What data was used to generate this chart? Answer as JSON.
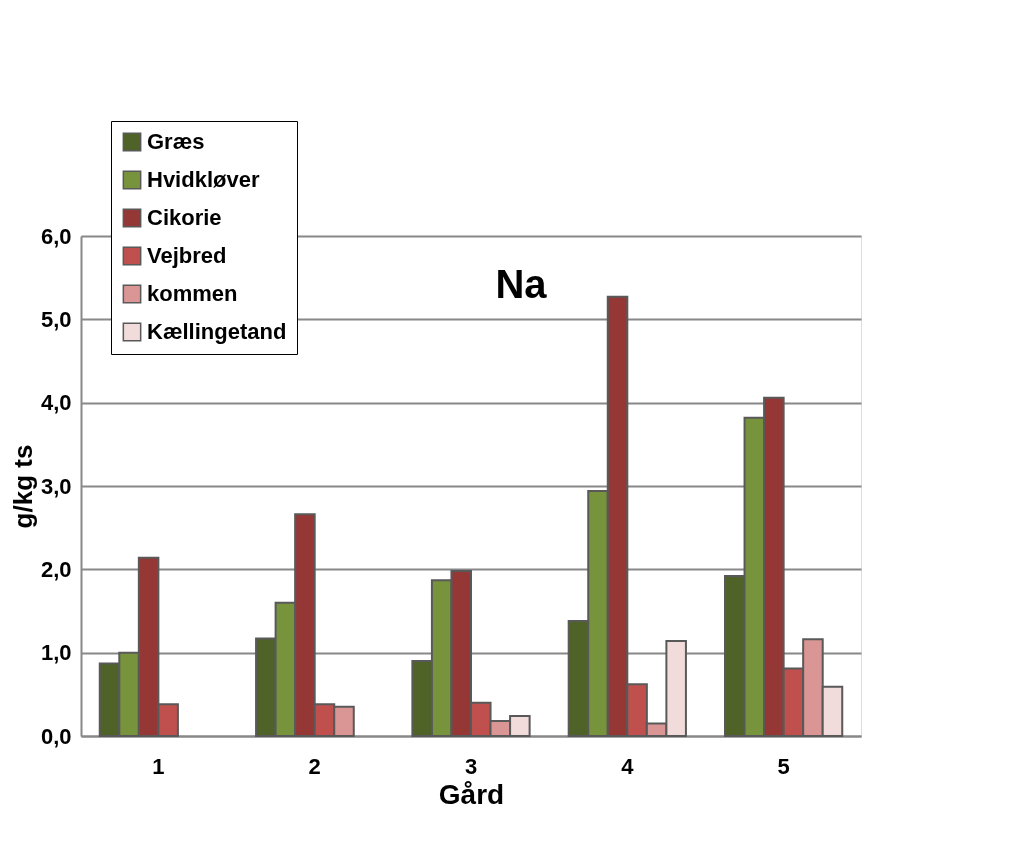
{
  "chart_data": {
    "type": "bar",
    "title": "Na",
    "xlabel": "Gård",
    "ylabel": "g/kg ts",
    "categories": [
      "1",
      "2",
      "3",
      "4",
      "5"
    ],
    "series": [
      {
        "name": "Græs",
        "color": "#4f6228",
        "values": [
          0.87,
          1.17,
          0.9,
          1.38,
          1.92
        ]
      },
      {
        "name": "Hvidkløver",
        "color": "#77933c",
        "values": [
          1.0,
          1.6,
          1.87,
          2.94,
          3.82
        ]
      },
      {
        "name": "Cikorie",
        "color": "#953735",
        "values": [
          2.14,
          2.66,
          1.98,
          5.27,
          4.06
        ]
      },
      {
        "name": "Vejbred",
        "color": "#c0504d",
        "values": [
          0.38,
          0.38,
          0.4,
          0.62,
          0.81
        ]
      },
      {
        "name": "kommen",
        "color": "#d99694",
        "values": [
          null,
          0.35,
          0.18,
          0.15,
          1.16
        ]
      },
      {
        "name": "Kællingetand",
        "color": "#f2dcdb",
        "values": [
          null,
          null,
          0.24,
          1.14,
          0.59
        ]
      }
    ],
    "ylim": [
      0,
      6
    ],
    "yticks": [
      {
        "value": 0,
        "label": "0,0"
      },
      {
        "value": 1,
        "label": "1,0"
      },
      {
        "value": 2,
        "label": "2,0"
      },
      {
        "value": 3,
        "label": "3,0"
      },
      {
        "value": 4,
        "label": "4,0"
      },
      {
        "value": 5,
        "label": "5,0"
      },
      {
        "value": 6,
        "label": "6,0"
      }
    ],
    "grid": "y",
    "legend": "top left"
  }
}
